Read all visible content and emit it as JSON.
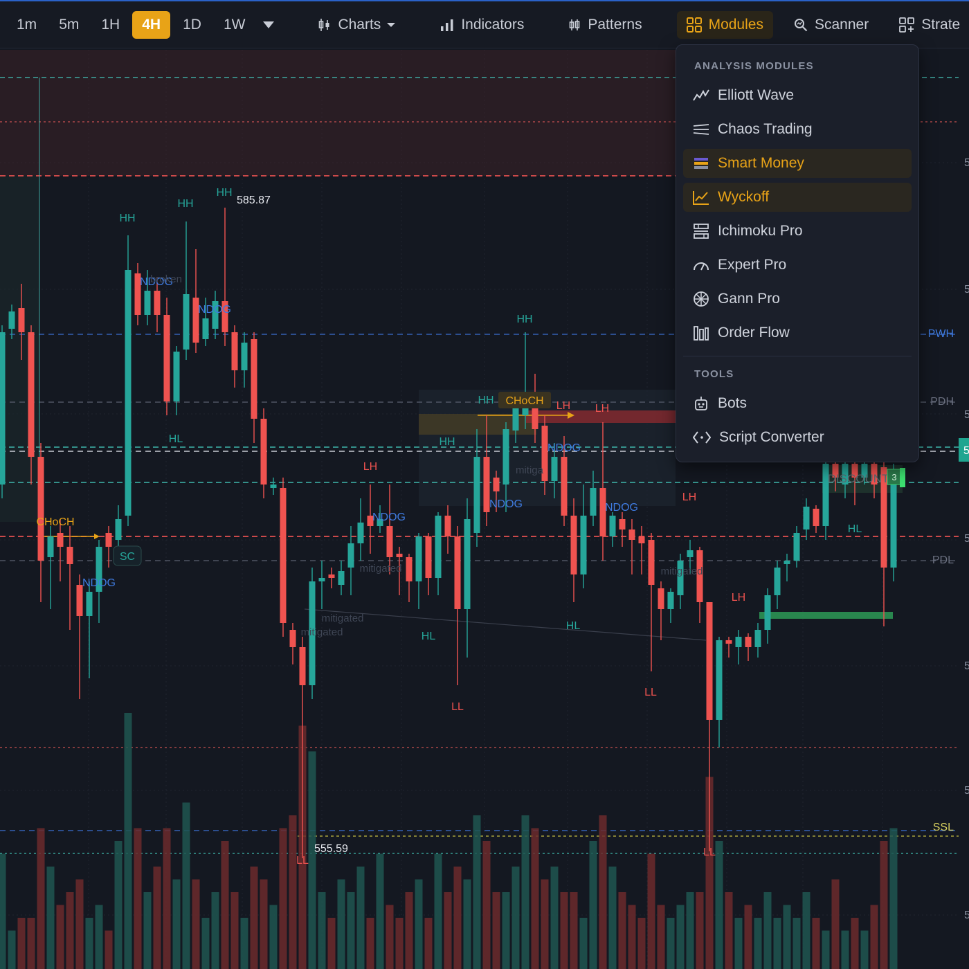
{
  "toolbar": {
    "timeframes": [
      "1m",
      "5m",
      "1H",
      "4H",
      "1D",
      "1W"
    ],
    "active_timeframe": "4H",
    "charts_label": "Charts",
    "indicators_label": "Indicators",
    "patterns_label": "Patterns",
    "modules_label": "Modules",
    "scanner_label": "Scanner",
    "strategies_label": "Strate"
  },
  "menu": {
    "analysis_header": "ANALYSIS MODULES",
    "items": [
      {
        "label": "Elliott Wave",
        "icon": "elliott-wave-icon"
      },
      {
        "label": "Chaos Trading",
        "icon": "chaos-lines-icon"
      },
      {
        "label": "Smart Money",
        "icon": "smart-money-icon"
      },
      {
        "label": "Wyckoff",
        "icon": "wyckoff-icon"
      },
      {
        "label": "Ichimoku Pro",
        "icon": "ichimoku-icon"
      },
      {
        "label": "Expert Pro",
        "icon": "gauge-icon"
      },
      {
        "label": "Gann Pro",
        "icon": "gann-wheel-icon"
      },
      {
        "label": "Order Flow",
        "icon": "order-flow-icon"
      }
    ],
    "tools_header": "TOOLS",
    "tools": [
      {
        "label": "Bots",
        "icon": "bot-icon"
      },
      {
        "label": "Script Converter",
        "icon": "code-icon"
      }
    ]
  },
  "chart": {
    "high_label": "585.87",
    "low_label": "555.59",
    "level_labels": [
      "PWH",
      "PDH",
      "PDL",
      "SSL"
    ],
    "structure_labels": [
      "HH",
      "HH",
      "HH",
      "HH",
      "HL",
      "LH",
      "HH",
      "HH",
      "LH",
      "LH",
      "HH",
      "HL",
      "LL",
      "HL",
      "LH",
      "LL",
      "LH",
      "HL",
      "LL",
      "LL"
    ],
    "choch_labels": [
      "CHoCH",
      "CHoCH"
    ],
    "ndog_labels": [
      "NDOG",
      "NDOG",
      "NDOG",
      "NDOG",
      "NDOG",
      "NDOG",
      "NDOG"
    ],
    "sc_label": "SC",
    "faint_labels": [
      "broken",
      "mitigated",
      "mitigated",
      "mitigated",
      "mitiga",
      "mitigated"
    ],
    "discount_label": "DISCOUNT",
    "axis_fragment": "5",
    "badge_count": "3",
    "colors": {
      "bull": "#26a69a",
      "bear": "#ef5350",
      "accent": "#e8a317",
      "ndog": "#3f7be0",
      "background": "#141821"
    }
  }
}
